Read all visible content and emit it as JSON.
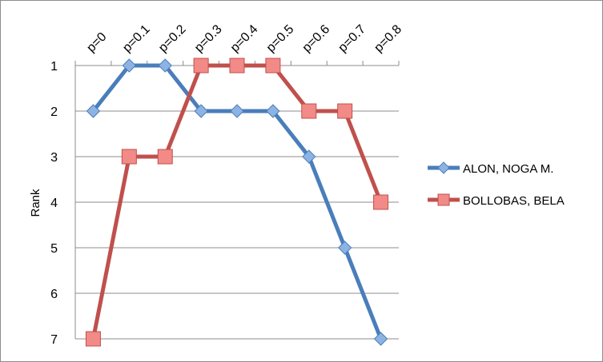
{
  "chart_data": {
    "type": "line",
    "categories": [
      "p=0",
      "p=0.1",
      "p=0.2",
      "p=0.3",
      "p=0.4",
      "p=0.5",
      "p=0.6",
      "p=0.7",
      "p=0.8"
    ],
    "ylabel": "Rank",
    "ylim": [
      1,
      7
    ],
    "y_reversed": true,
    "yticks": [
      "1",
      "2",
      "3",
      "4",
      "5",
      "6",
      "7"
    ],
    "grid": true,
    "legend_position": "right",
    "series": [
      {
        "name": "ALON, NOGA M.",
        "values": [
          2,
          1,
          1,
          2,
          2,
          2,
          3,
          5,
          7
        ],
        "color": "#4a7ebb",
        "marker": "diamond",
        "marker_fill": "#8db3e2"
      },
      {
        "name": "BOLLOBAS, BELA",
        "values": [
          7,
          3,
          3,
          1,
          1,
          1,
          2,
          2,
          4
        ],
        "color": "#c0504d",
        "marker": "square",
        "marker_fill": "#f28a87"
      }
    ]
  }
}
